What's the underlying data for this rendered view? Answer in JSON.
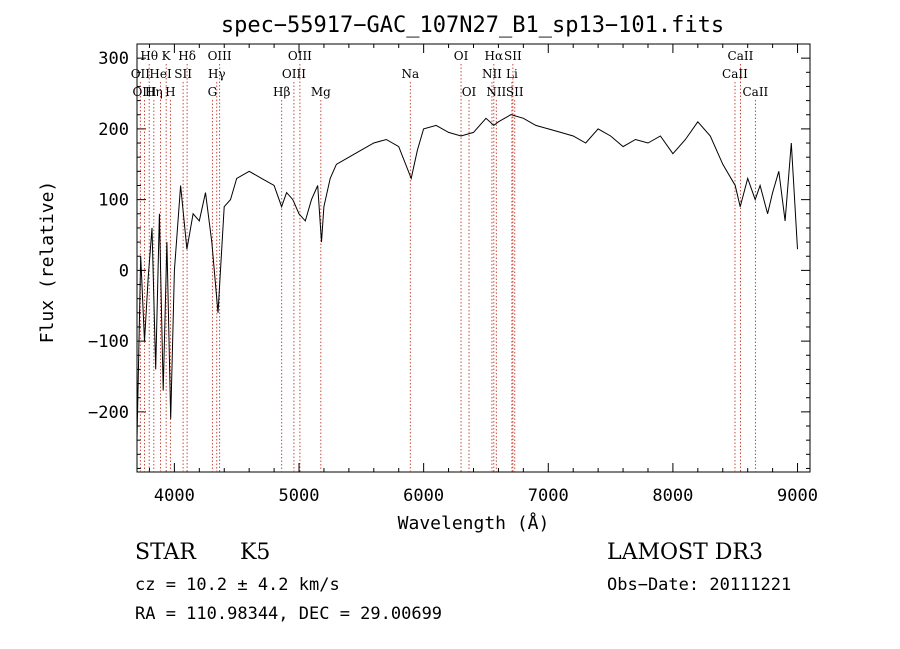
{
  "chart_data": {
    "type": "line",
    "title": "spec−55917−GAC_107N27_B1_sp13−101.fits",
    "xlabel": "Wavelength (Å)",
    "ylabel": "Flux (relative)",
    "xlim": [
      3700,
      9100
    ],
    "ylim": [
      -285,
      320
    ],
    "x_ticks": [
      4000,
      5000,
      6000,
      7000,
      8000,
      9000
    ],
    "y_ticks": [
      -200,
      -100,
      0,
      100,
      200,
      300
    ],
    "y_tick_labels": [
      "−200",
      "−100",
      "0",
      "100",
      "200",
      "300"
    ],
    "series": [
      {
        "name": "flux",
        "x": [
          3700,
          3730,
          3760,
          3790,
          3820,
          3850,
          3880,
          3910,
          3940,
          3970,
          4000,
          4050,
          4100,
          4150,
          4200,
          4250,
          4300,
          4350,
          4400,
          4450,
          4500,
          4600,
          4700,
          4800,
          4860,
          4900,
          4950,
          5000,
          5050,
          5100,
          5150,
          5180,
          5200,
          5250,
          5300,
          5400,
          5500,
          5600,
          5700,
          5800,
          5900,
          5950,
          6000,
          6100,
          6200,
          6300,
          6400,
          6500,
          6563,
          6600,
          6700,
          6800,
          6900,
          7000,
          7100,
          7200,
          7300,
          7400,
          7500,
          7600,
          7700,
          7800,
          7900,
          8000,
          8100,
          8200,
          8300,
          8400,
          8500,
          8540,
          8600,
          8660,
          8700,
          8760,
          8800,
          8850,
          8900,
          8950,
          9000
        ],
        "y": [
          -240,
          20,
          -100,
          -10,
          60,
          -140,
          80,
          -170,
          40,
          -210,
          0,
          120,
          30,
          80,
          70,
          110,
          40,
          -60,
          90,
          100,
          130,
          140,
          130,
          120,
          90,
          110,
          100,
          80,
          70,
          100,
          120,
          40,
          90,
          130,
          150,
          160,
          170,
          180,
          185,
          175,
          130,
          170,
          200,
          205,
          195,
          190,
          195,
          215,
          205,
          210,
          220,
          215,
          205,
          200,
          195,
          190,
          180,
          200,
          190,
          175,
          185,
          180,
          190,
          165,
          185,
          210,
          190,
          150,
          120,
          90,
          130,
          100,
          120,
          80,
          110,
          140,
          70,
          180,
          30
        ]
      }
    ],
    "lines_top": [
      {
        "label": "Hθ",
        "x": 3798
      },
      {
        "label": "K",
        "x": 3934
      },
      {
        "label": "Hδ",
        "x": 4102
      },
      {
        "label": "OIII",
        "x": 4363
      },
      {
        "label": "OIII",
        "x": 5007
      },
      {
        "label": "OI",
        "x": 6300
      },
      {
        "label": "Hα",
        "x": 6563
      },
      {
        "label": "SII",
        "x": 6716
      },
      {
        "label": "CaII",
        "x": 8542
      }
    ],
    "lines_mid": [
      {
        "label": "OII",
        "x": 3727
      },
      {
        "label": "HeI",
        "x": 3889
      },
      {
        "label": "SII",
        "x": 4070
      },
      {
        "label": "Hγ",
        "x": 4340
      },
      {
        "label": "OIII",
        "x": 4959
      },
      {
        "label": "Na",
        "x": 5893
      },
      {
        "label": "NII",
        "x": 6548
      },
      {
        "label": "Li",
        "x": 6708
      },
      {
        "label": "CaII",
        "x": 8498
      }
    ],
    "lines_low": [
      {
        "label": "OIII",
        "x": 3760
      },
      {
        "label": "Hη",
        "x": 3835
      },
      {
        "label": "H",
        "x": 3968
      },
      {
        "label": "G",
        "x": 4305
      },
      {
        "label": "Hβ",
        "x": 4861
      },
      {
        "label": "Mg",
        "x": 5175
      },
      {
        "label": "OI",
        "x": 6364
      },
      {
        "label": "NII",
        "x": 6583
      },
      {
        "label": "SII",
        "x": 6731
      },
      {
        "label": "CaII",
        "x": 8662
      }
    ]
  },
  "info": {
    "class_label": "STAR",
    "subclass": "K5",
    "survey": "LAMOST DR3",
    "cz": "cz = 10.2 ± 4.2 km/s",
    "obs_date": "Obs−Date: 20111221",
    "radec": "RA = 110.98344, DEC =  29.00699"
  }
}
